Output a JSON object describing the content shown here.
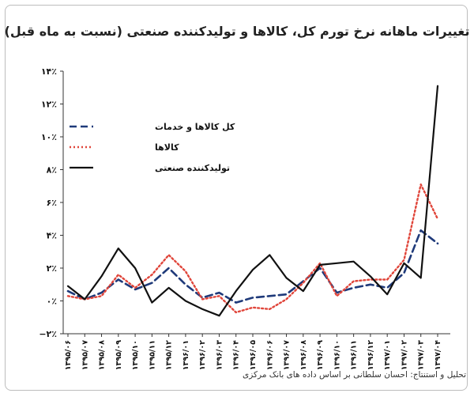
{
  "chart_data": {
    "type": "line",
    "title": "تغییرات ماهانه نرخ تورم کل، کالاها و تولیدکننده صنعتی (نسبت به ماه قبل)",
    "source": "تحلیل و استنتاج: احسان سلطانی بر اساس داده های بانک مرکزی",
    "ylim": [
      -2,
      14
    ],
    "yticks": [
      "−۲٪",
      "۰٪",
      "۲٪",
      "۴٪",
      "۶٪",
      "۸٪",
      "۱۰٪",
      "۱۲٪",
      "۱۴٪"
    ],
    "ytick_values": [
      -2,
      0,
      2,
      4,
      6,
      8,
      10,
      12,
      14
    ],
    "categories": [
      "۱۳۹۵/۰۶",
      "۱۳۹۵/۰۷",
      "۱۳۹۵/۰۸",
      "۱۳۹۵/۰۹",
      "۱۳۹۵/۱۰",
      "۱۳۹۵/۱۱",
      "۱۳۹۵/۱۲",
      "۱۳۹۶/۰۱",
      "۱۳۹۶/۰۲",
      "۱۳۹۶/۰۳",
      "۱۳۹۶/۰۴",
      "۱۳۹۶/۰۵",
      "۱۳۹۶/۰۶",
      "۱۳۹۶/۰۷",
      "۱۳۹۶/۰۸",
      "۱۳۹۶/۰۹",
      "۱۳۹۶/۱۰",
      "۱۳۹۶/۱۱",
      "۱۳۹۶/۱۲",
      "۱۳۹۷/۰۱",
      "۱۳۹۷/۰۲",
      "۱۳۹۷/۰۳",
      "۱۳۹۷/۰۴"
    ],
    "grid": false,
    "legend_position": "top-left",
    "series": [
      {
        "name": "کل کالاها و خدمات",
        "style": "dashed",
        "color": "#1f3a7a",
        "values": [
          0.6,
          0.1,
          0.5,
          1.3,
          0.7,
          1.1,
          2.0,
          1.0,
          0.2,
          0.5,
          -0.1,
          0.2,
          0.3,
          0.4,
          1.2,
          2.0,
          0.5,
          0.8,
          1.0,
          0.8,
          1.7,
          4.3,
          3.5
        ]
      },
      {
        "name": "کالاها",
        "style": "dotted",
        "color": "#e0453a",
        "values": [
          0.3,
          0.1,
          0.3,
          1.6,
          0.8,
          1.6,
          2.8,
          1.8,
          0.1,
          0.3,
          -0.7,
          -0.4,
          -0.5,
          0.1,
          1.1,
          2.3,
          0.3,
          1.2,
          1.3,
          1.3,
          2.5,
          7.1,
          5.0
        ]
      },
      {
        "name": "تولیدکننده صنعتی",
        "style": "solid",
        "color": "#111111",
        "values": [
          0.9,
          0.1,
          1.5,
          3.2,
          2.0,
          -0.1,
          0.8,
          0.0,
          -0.5,
          -0.9,
          0.6,
          1.9,
          2.8,
          1.4,
          0.6,
          2.2,
          2.3,
          2.4,
          1.5,
          0.4,
          2.3,
          1.4,
          13.1
        ]
      }
    ]
  }
}
